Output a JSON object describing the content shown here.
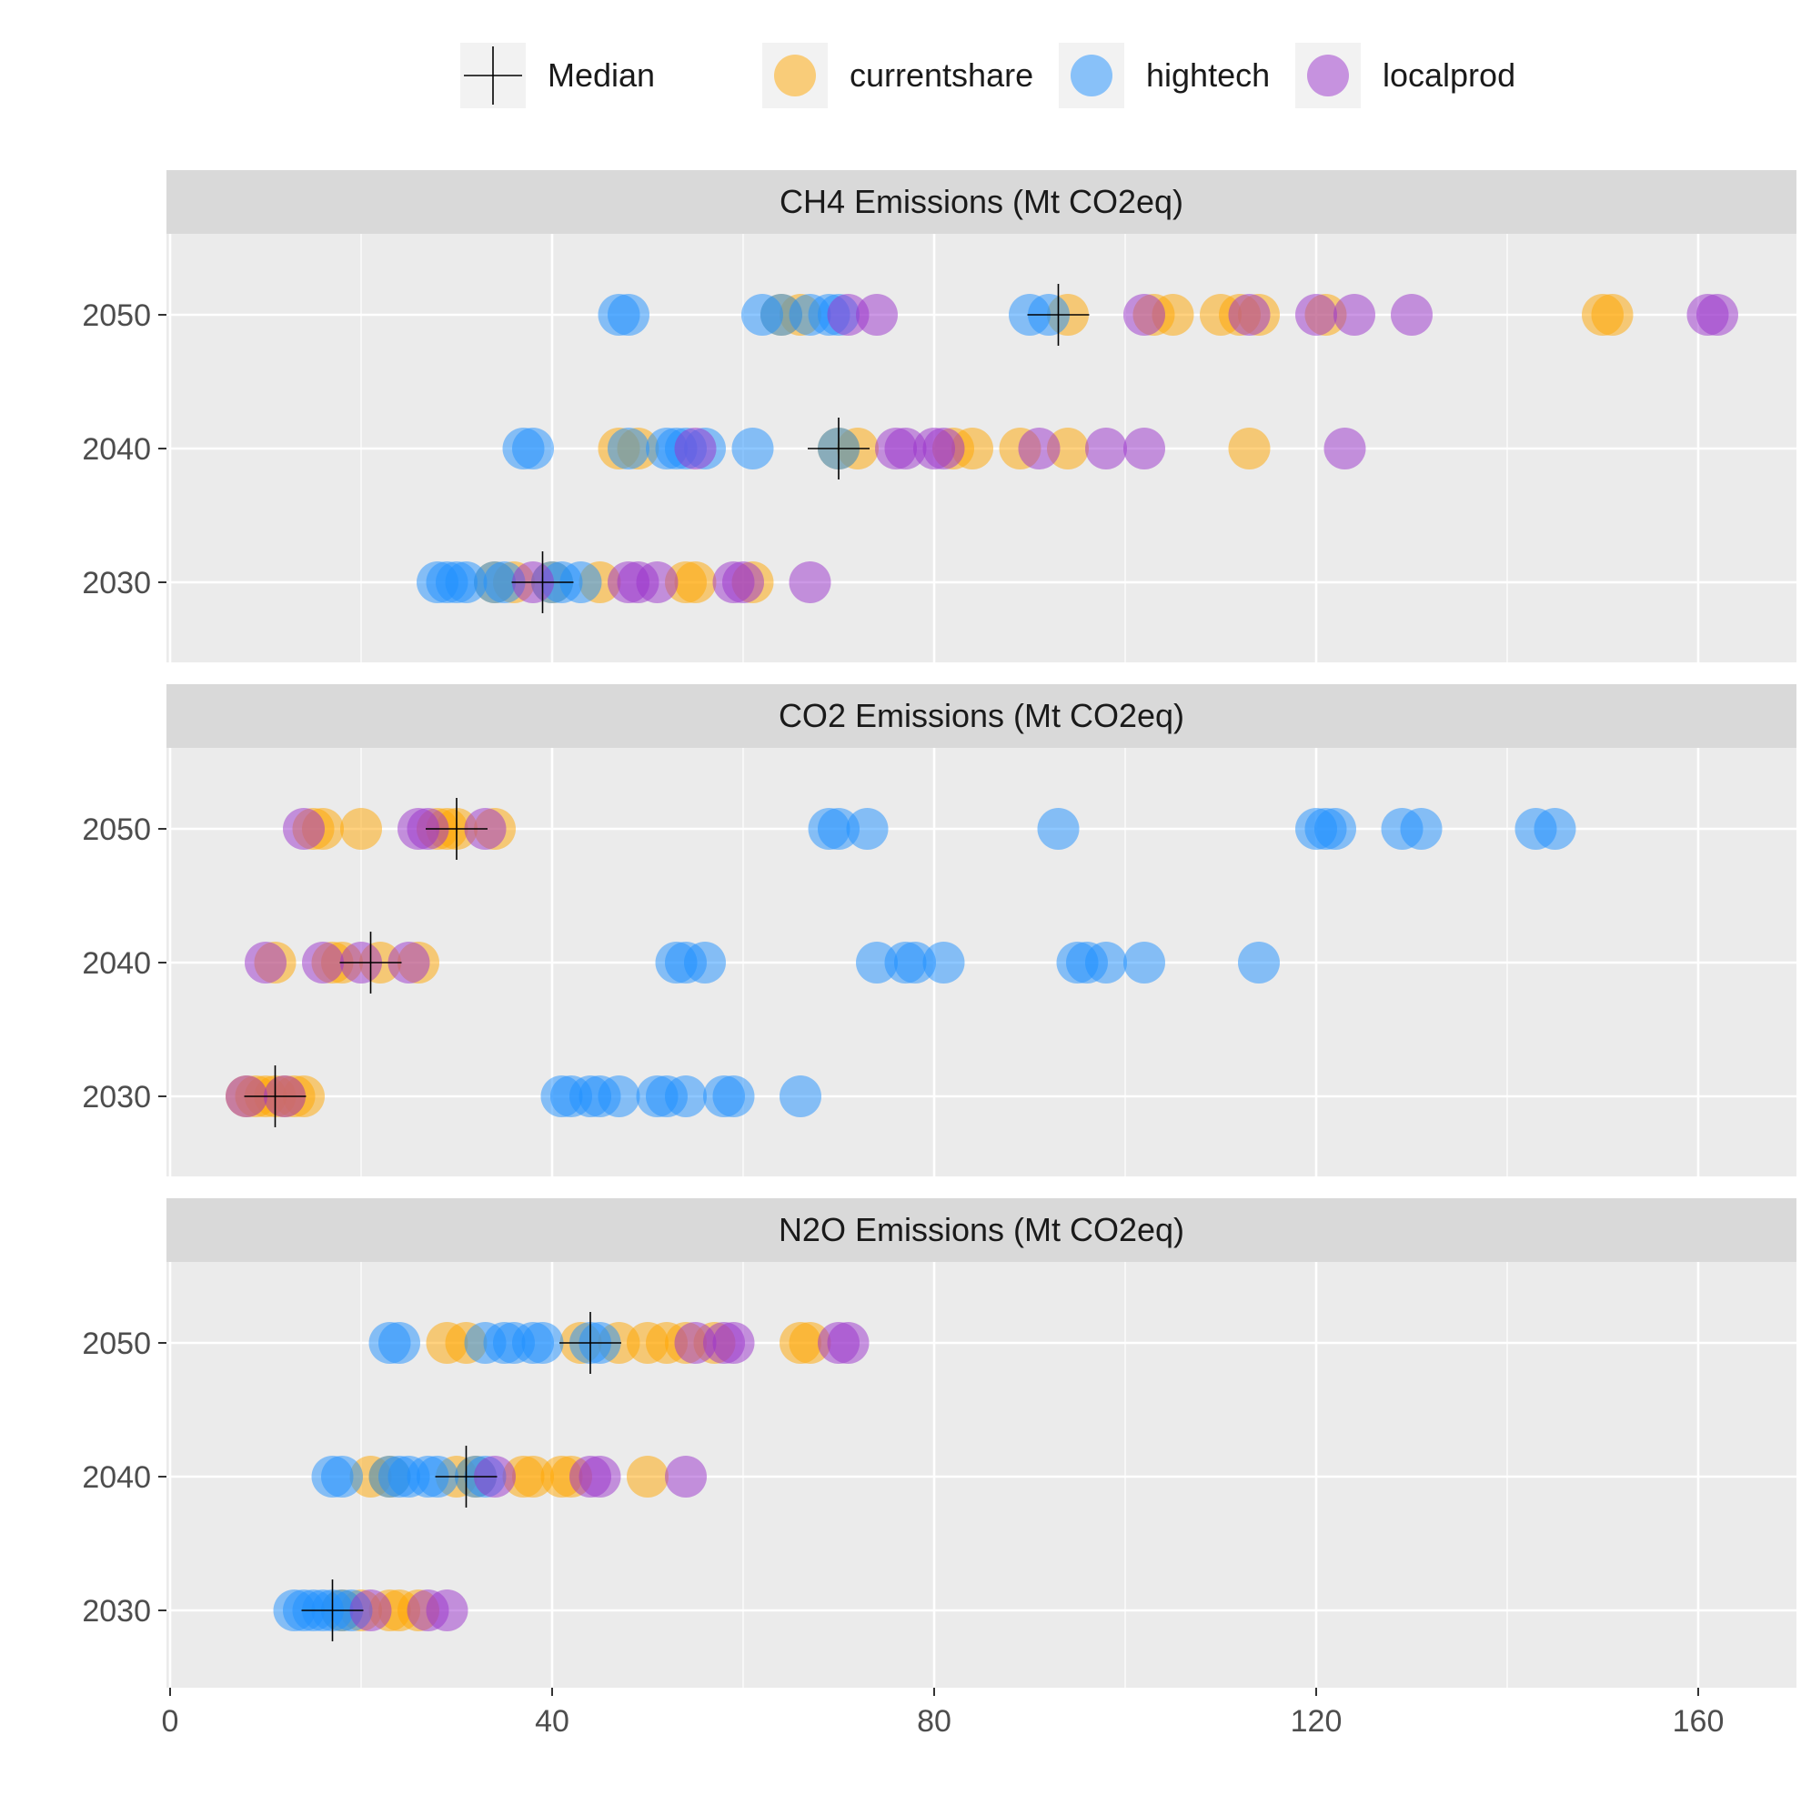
{
  "legend": {
    "median_label": "Median",
    "items": [
      {
        "key": "currentshare",
        "label": "currentshare",
        "color": "#FFA500"
      },
      {
        "key": "hightech",
        "label": "hightech",
        "color": "#1E90FF"
      },
      {
        "key": "localprod",
        "label": "localprod",
        "color": "#9932CC"
      }
    ]
  },
  "colors": {
    "panel_bg": "#EBEBEB",
    "strip_bg": "#D9D9D9",
    "grid": "#FFFFFF",
    "median": "#000000"
  },
  "chart_data": {
    "type": "scatter",
    "orientation": "horizontal",
    "xlim": [
      0,
      170
    ],
    "x_ticks": [
      0,
      40,
      80,
      120,
      160
    ],
    "x_tick_labels": [
      "0",
      "40",
      "80",
      "120",
      "160"
    ],
    "y_categories": [
      "2030",
      "2040",
      "2050"
    ],
    "xlabel": "",
    "ylabel": "",
    "grid": true,
    "legend_position": "top",
    "panels": [
      {
        "title": "CH4 Emissions (Mt CO2eq)",
        "rows": [
          {
            "year": "2050",
            "median": 93,
            "points": {
              "currentshare": [
                64,
                66,
                94,
                103,
                105,
                110,
                112,
                114,
                121,
                150,
                151
              ],
              "hightech": [
                47,
                48,
                62,
                64,
                67,
                69,
                70,
                90,
                92
              ],
              "localprod": [
                71,
                74,
                102,
                113,
                120,
                124,
                130,
                161,
                162
              ]
            }
          },
          {
            "year": "2040",
            "median": 70,
            "points": {
              "currentshare": [
                47,
                49,
                70,
                72,
                82,
                84,
                89,
                94,
                113
              ],
              "hightech": [
                37,
                38,
                48,
                52,
                53,
                54,
                56,
                61,
                70
              ],
              "localprod": [
                55,
                76,
                77,
                80,
                81,
                91,
                98,
                102,
                123
              ]
            }
          },
          {
            "year": "2030",
            "median": 39,
            "points": {
              "currentshare": [
                34,
                36,
                40,
                45,
                54,
                55,
                61
              ],
              "hightech": [
                28,
                29,
                30,
                31,
                34,
                35,
                40,
                41,
                43
              ],
              "localprod": [
                38,
                48,
                49,
                51,
                59,
                60,
                67
              ]
            }
          }
        ]
      },
      {
        "title": "CO2 Emissions (Mt CO2eq)",
        "rows": [
          {
            "year": "2050",
            "median": 30,
            "points": {
              "currentshare": [
                15,
                16,
                20,
                28,
                29,
                30,
                34
              ],
              "hightech": [
                69,
                70,
                73,
                93,
                120,
                121,
                122,
                129,
                131,
                143,
                145
              ],
              "localprod": [
                14,
                26,
                27,
                33
              ]
            }
          },
          {
            "year": "2040",
            "median": 21,
            "points": {
              "currentshare": [
                11,
                17,
                18,
                22,
                26
              ],
              "hightech": [
                53,
                54,
                56,
                74,
                77,
                78,
                81,
                95,
                96,
                98,
                102,
                114
              ],
              "localprod": [
                10,
                16,
                20,
                25
              ]
            }
          },
          {
            "year": "2030",
            "median": 11,
            "points": {
              "currentshare": [
                8,
                9,
                10,
                11,
                12,
                13,
                14
              ],
              "hightech": [
                41,
                42,
                44,
                45,
                47,
                51,
                52,
                54,
                58,
                59,
                66
              ],
              "localprod": [
                8,
                12
              ]
            }
          }
        ]
      },
      {
        "title": "N2O Emissions (Mt CO2eq)",
        "rows": [
          {
            "year": "2050",
            "median": 44,
            "points": {
              "currentshare": [
                29,
                31,
                43,
                47,
                50,
                52,
                54,
                57,
                66,
                67
              ],
              "hightech": [
                23,
                24,
                33,
                35,
                36,
                38,
                39,
                44,
                45
              ],
              "localprod": [
                55,
                58,
                59,
                70,
                71
              ]
            }
          },
          {
            "year": "2040",
            "median": 31,
            "points": {
              "currentshare": [
                21,
                23,
                30,
                32,
                37,
                38,
                41,
                42,
                50
              ],
              "hightech": [
                17,
                18,
                23,
                24,
                25,
                27,
                28,
                32,
                33
              ],
              "localprod": [
                34,
                44,
                45,
                54
              ]
            }
          },
          {
            "year": "2030",
            "median": 17,
            "points": {
              "currentshare": [
                18,
                20,
                23,
                24,
                26
              ],
              "hightech": [
                13,
                14,
                15,
                16,
                17,
                18,
                19
              ],
              "localprod": [
                21,
                27,
                29
              ]
            }
          }
        ]
      }
    ]
  }
}
